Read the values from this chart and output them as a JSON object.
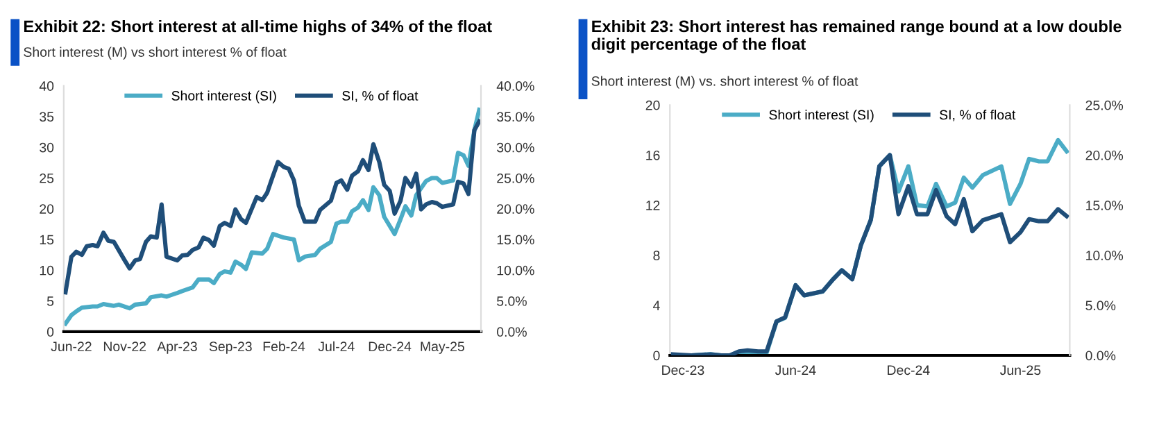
{
  "chart_data": [
    {
      "type": "line",
      "title": "Exhibit 22: Short interest at all-time highs of 34% of the float",
      "subtitle": "Short interest (M) vs short interest % of float",
      "xlim": [
        "2022-05-10",
        "2025-08-20"
      ],
      "xticks": [
        {
          "value": "2022-06-01",
          "label": "Jun-22"
        },
        {
          "value": "2022-11-01",
          "label": "Nov-22"
        },
        {
          "value": "2023-04-01",
          "label": "Apr-23"
        },
        {
          "value": "2023-09-01",
          "label": "Sep-23"
        },
        {
          "value": "2024-02-01",
          "label": "Feb-24"
        },
        {
          "value": "2024-07-01",
          "label": "Jul-24"
        },
        {
          "value": "2024-12-01",
          "label": "Dec-24"
        },
        {
          "value": "2025-05-01",
          "label": "May-25"
        }
      ],
      "ylim": [
        0,
        40
      ],
      "yticks": [
        0,
        5,
        10,
        15,
        20,
        25,
        30,
        35,
        40
      ],
      "y2lim": [
        0,
        40
      ],
      "y2ticks": [
        {
          "value": 0,
          "label": "0.0%"
        },
        {
          "value": 5,
          "label": "5.0%"
        },
        {
          "value": 10,
          "label": "10.0%"
        },
        {
          "value": 15,
          "label": "15.0%"
        },
        {
          "value": 20,
          "label": "20.0%"
        },
        {
          "value": 25,
          "label": "25.0%"
        },
        {
          "value": 30,
          "label": "30.0%"
        },
        {
          "value": 35,
          "label": "35.0%"
        },
        {
          "value": 40,
          "label": "40.0%"
        }
      ],
      "grid": false,
      "legend": "top",
      "marker": "none",
      "line_style": "solid",
      "series": [
        {
          "name": "Short interest (SI)",
          "color": "#4bacc6",
          "x": [
            "2022-05-15",
            "2022-06-01",
            "2022-06-15",
            "2022-07-01",
            "2022-08-01",
            "2022-08-15",
            "2022-09-01",
            "2022-10-01",
            "2022-10-15",
            "2022-11-15",
            "2022-12-01",
            "2023-01-01",
            "2023-01-15",
            "2023-02-15",
            "2023-03-01",
            "2023-04-01",
            "2023-04-15",
            "2023-05-15",
            "2023-06-01",
            "2023-07-01",
            "2023-07-15",
            "2023-08-01",
            "2023-08-15",
            "2023-09-01",
            "2023-09-15",
            "2023-10-01",
            "2023-10-15",
            "2023-11-01",
            "2023-12-01",
            "2023-12-15",
            "2024-01-01",
            "2024-02-01",
            "2024-03-01",
            "2024-03-15",
            "2024-04-01",
            "2024-05-01",
            "2024-05-15",
            "2024-06-15",
            "2024-07-01",
            "2024-07-15",
            "2024-08-01",
            "2024-08-15",
            "2024-09-01",
            "2024-09-15",
            "2024-10-01",
            "2024-10-15",
            "2024-11-01",
            "2024-11-15",
            "2024-12-15",
            "2025-01-01",
            "2025-01-15",
            "2025-02-01",
            "2025-02-15",
            "2025-03-15",
            "2025-04-01",
            "2025-04-15",
            "2025-05-01",
            "2025-06-01",
            "2025-06-15",
            "2025-07-01",
            "2025-07-15",
            "2025-08-01",
            "2025-08-15"
          ],
          "values": [
            1.3,
            2.7,
            3.3,
            3.9,
            4.1,
            4.1,
            4.5,
            4.2,
            4.4,
            3.8,
            4.4,
            4.6,
            5.6,
            5.9,
            5.7,
            6.3,
            6.6,
            7.2,
            8.5,
            8.5,
            7.9,
            9.4,
            9.8,
            9.6,
            11.4,
            10.9,
            10.2,
            12.9,
            12.7,
            13.5,
            15.9,
            15.3,
            15.0,
            11.6,
            12.2,
            12.5,
            13.5,
            14.6,
            17.6,
            17.9,
            17.9,
            19.6,
            20.2,
            21.4,
            19.8,
            23.5,
            22.2,
            18.7,
            15.9,
            18.3,
            20.4,
            18.9,
            22.2,
            24.5,
            25.0,
            25.0,
            24.2,
            24.6,
            29.1,
            28.7,
            27.0,
            32.8,
            36.1
          ]
        },
        {
          "name": "SI, % of float",
          "color": "#1f4e79",
          "axis": "y2",
          "x": [
            "2022-05-15",
            "2022-06-01",
            "2022-06-15",
            "2022-07-01",
            "2022-07-15",
            "2022-08-01",
            "2022-08-15",
            "2022-09-01",
            "2022-09-15",
            "2022-10-01",
            "2022-11-01",
            "2022-11-15",
            "2022-12-01",
            "2022-12-15",
            "2023-01-01",
            "2023-01-15",
            "2023-02-01",
            "2023-02-15",
            "2023-03-01",
            "2023-04-01",
            "2023-04-15",
            "2023-05-01",
            "2023-05-15",
            "2023-06-01",
            "2023-06-15",
            "2023-07-01",
            "2023-07-15",
            "2023-08-01",
            "2023-08-15",
            "2023-09-01",
            "2023-09-15",
            "2023-10-01",
            "2023-10-15",
            "2023-11-15",
            "2023-12-01",
            "2023-12-15",
            "2024-01-01",
            "2024-01-15",
            "2024-02-01",
            "2024-02-15",
            "2024-03-01",
            "2024-03-15",
            "2024-04-01",
            "2024-04-15",
            "2024-05-01",
            "2024-05-15",
            "2024-06-15",
            "2024-07-01",
            "2024-07-15",
            "2024-08-01",
            "2024-08-15",
            "2024-09-01",
            "2024-09-15",
            "2024-10-01",
            "2024-10-15",
            "2024-11-01",
            "2024-11-15",
            "2024-12-01",
            "2024-12-15",
            "2025-01-01",
            "2025-01-15",
            "2025-02-01",
            "2025-02-15",
            "2025-03-01",
            "2025-03-15",
            "2025-04-01",
            "2025-04-15",
            "2025-05-01",
            "2025-06-01",
            "2025-06-15",
            "2025-07-01",
            "2025-07-15",
            "2025-08-01",
            "2025-08-15"
          ],
          "values": [
            6.4,
            12.2,
            13.0,
            12.5,
            13.9,
            14.1,
            13.9,
            16.1,
            14.8,
            14.6,
            11.6,
            10.3,
            11.6,
            11.8,
            14.6,
            15.5,
            15.3,
            20.7,
            12.2,
            11.6,
            12.4,
            12.5,
            13.3,
            13.7,
            15.3,
            14.9,
            14.0,
            17.2,
            17.7,
            17.2,
            19.9,
            18.3,
            17.7,
            21.9,
            21.4,
            22.6,
            25.4,
            27.6,
            26.8,
            26.5,
            24.6,
            20.5,
            17.9,
            17.9,
            17.9,
            19.8,
            21.3,
            24.2,
            24.6,
            23.1,
            25.4,
            26.1,
            27.9,
            26.3,
            30.5,
            27.6,
            23.9,
            22.9,
            19.2,
            21.3,
            25.0,
            23.6,
            25.7,
            19.9,
            20.7,
            21.1,
            20.9,
            20.3,
            20.7,
            24.4,
            24.1,
            22.4,
            32.8,
            34.2
          ]
        }
      ]
    },
    {
      "type": "line",
      "title": "Exhibit 23: Short interest has remained range bound at a low double digit percentage of the float",
      "subtitle": "Short interest (M) vs. short interest % of float",
      "xlim": [
        "2023-11-10",
        "2025-08-20"
      ],
      "xticks": [
        {
          "value": "2023-12-01",
          "label": "Dec-23"
        },
        {
          "value": "2024-06-01",
          "label": "Jun-24"
        },
        {
          "value": "2024-12-01",
          "label": "Dec-24"
        },
        {
          "value": "2025-06-01",
          "label": "Jun-25"
        }
      ],
      "ylim": [
        0,
        20
      ],
      "yticks": [
        0,
        4,
        8,
        12,
        16,
        20
      ],
      "y2lim": [
        0,
        25
      ],
      "y2ticks": [
        {
          "value": 0,
          "label": "0.0%"
        },
        {
          "value": 5,
          "label": "5.0%"
        },
        {
          "value": 10,
          "label": "10.0%"
        },
        {
          "value": 15,
          "label": "15.0%"
        },
        {
          "value": 20,
          "label": "20.0%"
        },
        {
          "value": 25,
          "label": "25.0%"
        }
      ],
      "grid": false,
      "legend": "top",
      "marker": "none",
      "line_style": "solid",
      "series": [
        {
          "name": "Short interest (SI)",
          "color": "#4bacc6",
          "x": [
            "2023-11-15",
            "2023-12-15",
            "2024-01-15",
            "2024-02-01",
            "2024-02-15",
            "2024-03-01",
            "2024-03-15",
            "2024-04-01",
            "2024-04-15",
            "2024-05-01",
            "2024-05-15",
            "2024-06-01",
            "2024-06-15",
            "2024-07-15",
            "2024-08-01",
            "2024-08-15",
            "2024-09-01",
            "2024-09-15",
            "2024-10-01",
            "2024-10-15",
            "2024-11-01",
            "2024-11-15",
            "2024-12-01",
            "2024-12-15",
            "2025-01-01",
            "2025-01-15",
            "2025-02-01",
            "2025-02-15",
            "2025-03-01",
            "2025-03-15",
            "2025-04-01",
            "2025-05-01",
            "2025-05-15",
            "2025-06-01",
            "2025-06-15",
            "2025-07-01",
            "2025-07-15",
            "2025-08-01",
            "2025-08-15"
          ],
          "values": [
            0,
            0,
            0.1,
            0,
            0,
            0,
            0.1,
            0.1,
            0.2,
            2.7,
            3.0,
            5.6,
            4.8,
            5.1,
            6.1,
            6.8,
            6.1,
            8.8,
            10.8,
            15.1,
            16.0,
            13.1,
            15.1,
            12.0,
            11.9,
            13.7,
            11.9,
            12.2,
            14.2,
            13.4,
            14.4,
            15.1,
            12.1,
            13.7,
            15.7,
            15.5,
            15.5,
            17.2,
            16.3
          ]
        },
        {
          "name": "SI, % of float",
          "color": "#1f4e79",
          "axis": "y2",
          "x": [
            "2023-11-15",
            "2023-12-15",
            "2024-01-15",
            "2024-02-01",
            "2024-02-15",
            "2024-03-01",
            "2024-03-15",
            "2024-04-01",
            "2024-04-15",
            "2024-05-01",
            "2024-05-15",
            "2024-06-01",
            "2024-06-15",
            "2024-07-15",
            "2024-08-01",
            "2024-08-15",
            "2024-09-01",
            "2024-09-15",
            "2024-10-01",
            "2024-10-15",
            "2024-11-01",
            "2024-11-15",
            "2024-12-01",
            "2024-12-15",
            "2025-01-01",
            "2025-01-15",
            "2025-02-01",
            "2025-02-15",
            "2025-03-01",
            "2025-03-15",
            "2025-04-01",
            "2025-05-01",
            "2025-05-15",
            "2025-06-01",
            "2025-06-15",
            "2025-07-01",
            "2025-07-15",
            "2025-08-01",
            "2025-08-15"
          ],
          "values": [
            0.1,
            0,
            0.1,
            0,
            0,
            0.4,
            0.5,
            0.4,
            0.4,
            3.4,
            3.8,
            7.0,
            6.0,
            6.4,
            7.6,
            8.5,
            7.6,
            11.0,
            13.5,
            18.9,
            20.0,
            14.1,
            16.9,
            14.1,
            14.1,
            16.5,
            13.9,
            13.1,
            15.6,
            12.4,
            13.5,
            14.1,
            11.3,
            12.3,
            13.6,
            13.4,
            13.4,
            14.6,
            13.9
          ]
        }
      ]
    }
  ]
}
